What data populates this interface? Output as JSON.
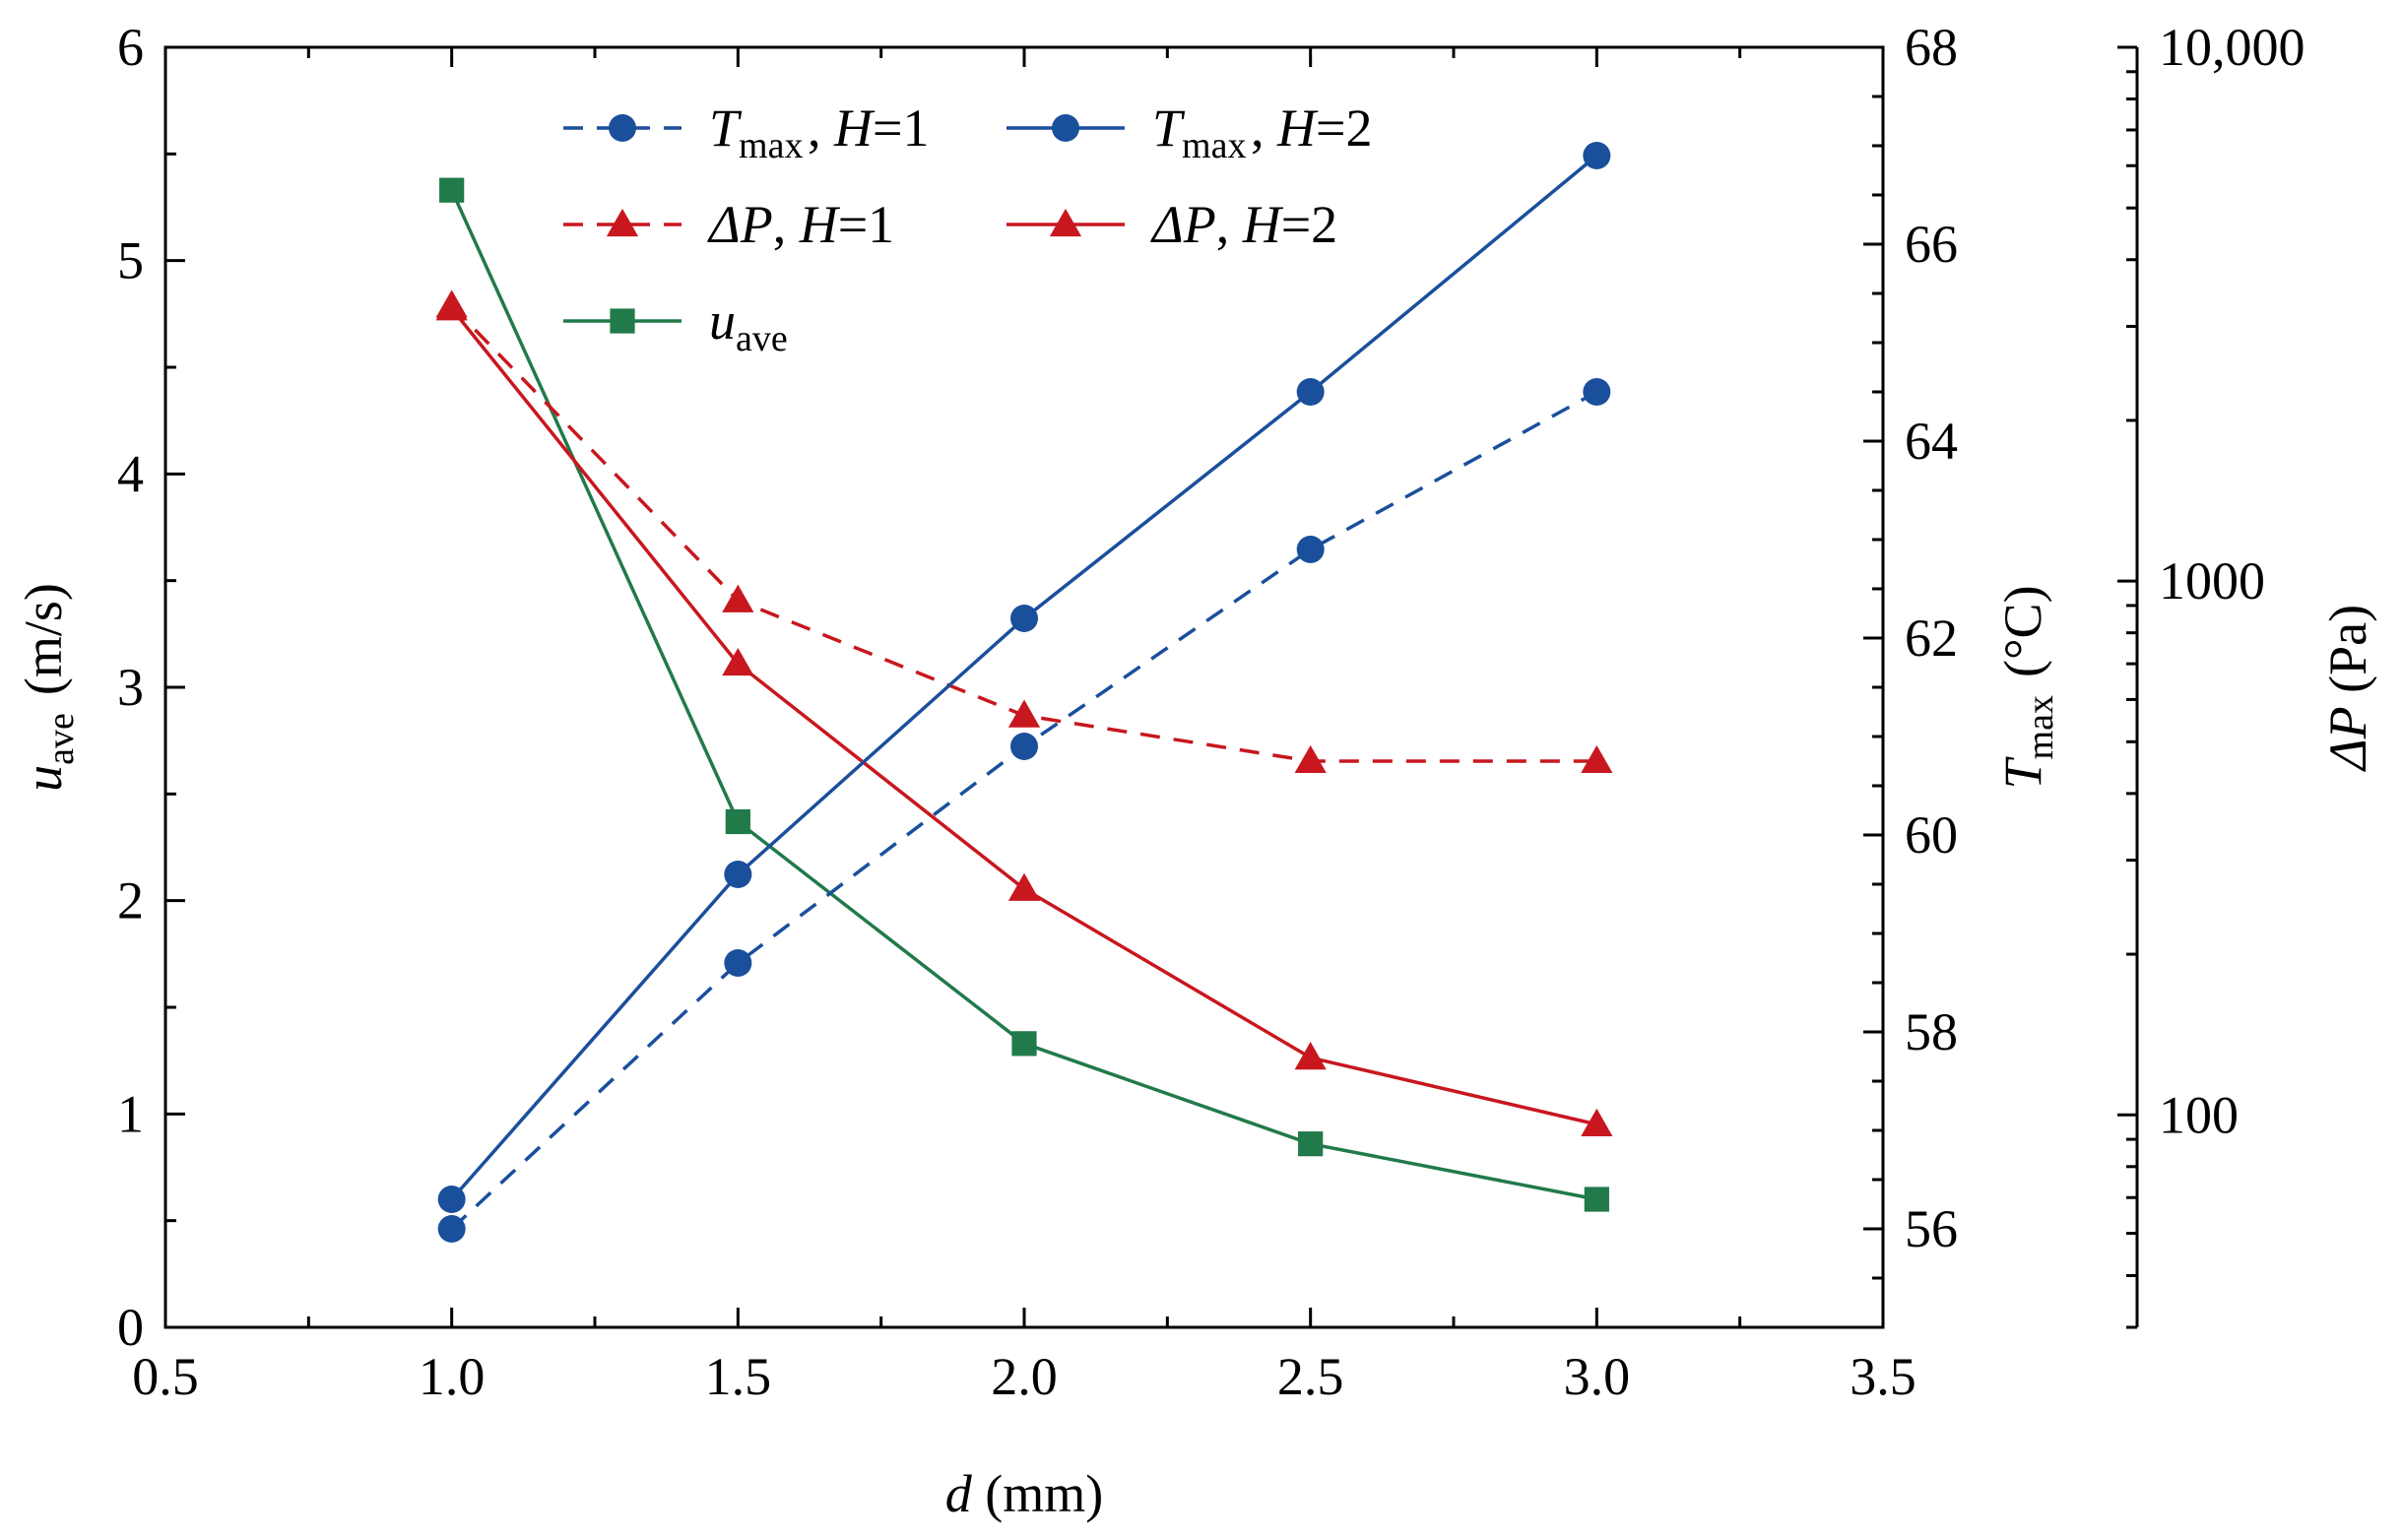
{
  "chart_data": {
    "type": "line",
    "xlabel": {
      "italic": "d",
      "rest": " (mm)"
    },
    "x": [
      1.0,
      1.5,
      2.0,
      2.5,
      3.0
    ],
    "x_axis": {
      "lim": [
        0.5,
        3.5
      ],
      "major": [
        0.5,
        1.0,
        1.5,
        2.0,
        2.5,
        3.0,
        3.5
      ],
      "minor_step": 0.25
    },
    "axes": {
      "left": {
        "lim": [
          0,
          6
        ],
        "major": [
          0,
          1,
          2,
          3,
          4,
          5,
          6
        ],
        "minor_step": 0.5,
        "tick_labels": [
          "0",
          "1",
          "2",
          "3",
          "4",
          "5",
          "6"
        ],
        "label": {
          "italic": "u",
          "sub": "ave",
          "rest": " (m/s)"
        }
      },
      "right1": {
        "lim": [
          55,
          68
        ],
        "major": [
          56,
          58,
          60,
          62,
          64,
          66,
          68
        ],
        "minor_step": 0.5,
        "tick_labels": [
          "56",
          "58",
          "60",
          "62",
          "64",
          "66",
          "68"
        ],
        "label": {
          "italic": "T",
          "sub": "max",
          "rest": " (°C)"
        }
      },
      "right2": {
        "scale": "log",
        "lim": [
          40,
          10000
        ],
        "major": [
          100,
          1000,
          10000
        ],
        "tick_labels": [
          "100",
          "1000",
          "10,000"
        ],
        "label": {
          "italic": "ΔP",
          "rest": " (Pa)"
        }
      }
    },
    "series": [
      {
        "name": "T_max, H=1",
        "axis": "right1",
        "color": "#1a4f9c",
        "dash": true,
        "marker": "circle",
        "values": [
          56.0,
          58.7,
          60.9,
          62.9,
          64.5
        ]
      },
      {
        "name": "T_max, H=2",
        "axis": "right1",
        "color": "#1a4f9c",
        "dash": false,
        "marker": "circle",
        "values": [
          56.3,
          59.6,
          62.2,
          64.5,
          66.9
        ]
      },
      {
        "name": "ΔP, H=1",
        "axis": "right2",
        "color": "#c8171e",
        "dash": true,
        "marker": "triangle",
        "values": [
          3280,
          920,
          560,
          460,
          460
        ]
      },
      {
        "name": "ΔP, H=2",
        "axis": "right2",
        "color": "#c8171e",
        "dash": false,
        "marker": "triangle",
        "values": [
          3240,
          700,
          265,
          128,
          96
        ]
      },
      {
        "name": "u_ave",
        "axis": "left",
        "color": "#217a4a",
        "dash": false,
        "marker": "square",
        "values": [
          5.33,
          2.37,
          1.33,
          0.86,
          0.6
        ]
      }
    ],
    "legend": {
      "placement": "top-center",
      "entries": [
        {
          "italic": "T",
          "sub": "max",
          "rest": ", ",
          "italic2": "H",
          "rest2": "=1",
          "series": 0
        },
        {
          "italic": "T",
          "sub": "max",
          "rest": ", ",
          "italic2": "H",
          "rest2": "=2",
          "series": 1
        },
        {
          "italic": "ΔP",
          "sub": "",
          "rest": ", ",
          "italic2": "H",
          "rest2": "=1",
          "series": 2
        },
        {
          "italic": "ΔP",
          "sub": "",
          "rest": ", ",
          "italic2": "H",
          "rest2": "=2",
          "series": 3
        },
        {
          "italic": "u",
          "sub": "ave",
          "rest": "",
          "italic2": "",
          "rest2": "",
          "series": 4
        }
      ]
    }
  }
}
